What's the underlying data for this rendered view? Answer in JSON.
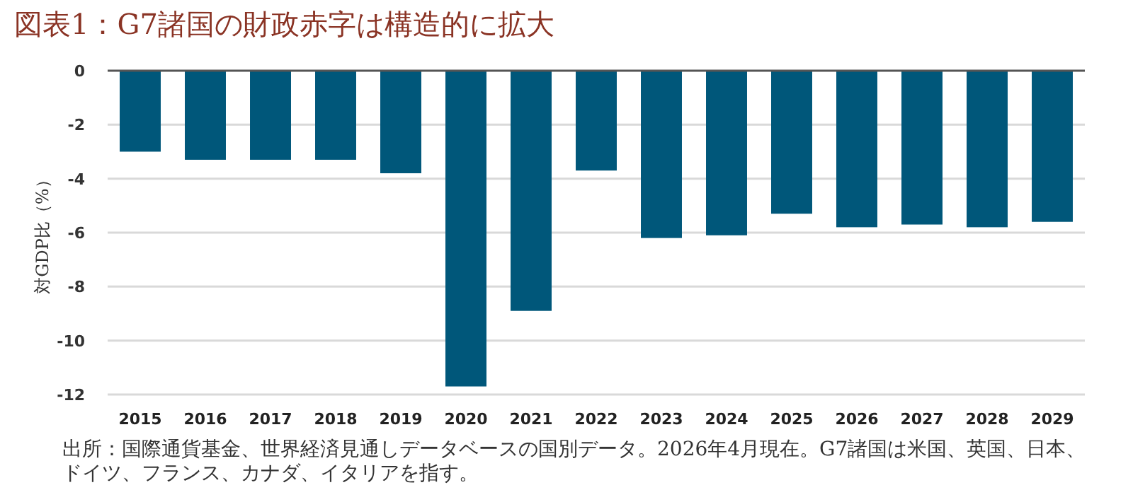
{
  "chart_data": {
    "type": "bar",
    "title": "図表1：G7諸国の財政赤字は構造的に拡大",
    "ylabel": "対GDP比（%）",
    "categories": [
      "2015",
      "2016",
      "2017",
      "2018",
      "2019",
      "2020",
      "2021",
      "2022",
      "2023",
      "2024",
      "2025",
      "2026",
      "2027",
      "2028",
      "2029"
    ],
    "values": [
      -3.0,
      -3.3,
      -3.3,
      -3.3,
      -3.8,
      -11.7,
      -8.9,
      -3.7,
      -6.2,
      -6.1,
      -5.3,
      -5.8,
      -5.7,
      -5.8,
      -5.6
    ],
    "color": "#00577a",
    "ylim": [
      -12,
      0
    ],
    "yticks": [
      0,
      -2,
      -4,
      -6,
      -8,
      -10,
      -12
    ],
    "grid": "y",
    "annotations": [
      "出所：国際通貨基金、世界経済見通しデータベースの国別データ。2026年4月現在。G7諸国は米国、英国、日本、ドイツ、フランス、カナダ、イタリアを指す。"
    ]
  }
}
